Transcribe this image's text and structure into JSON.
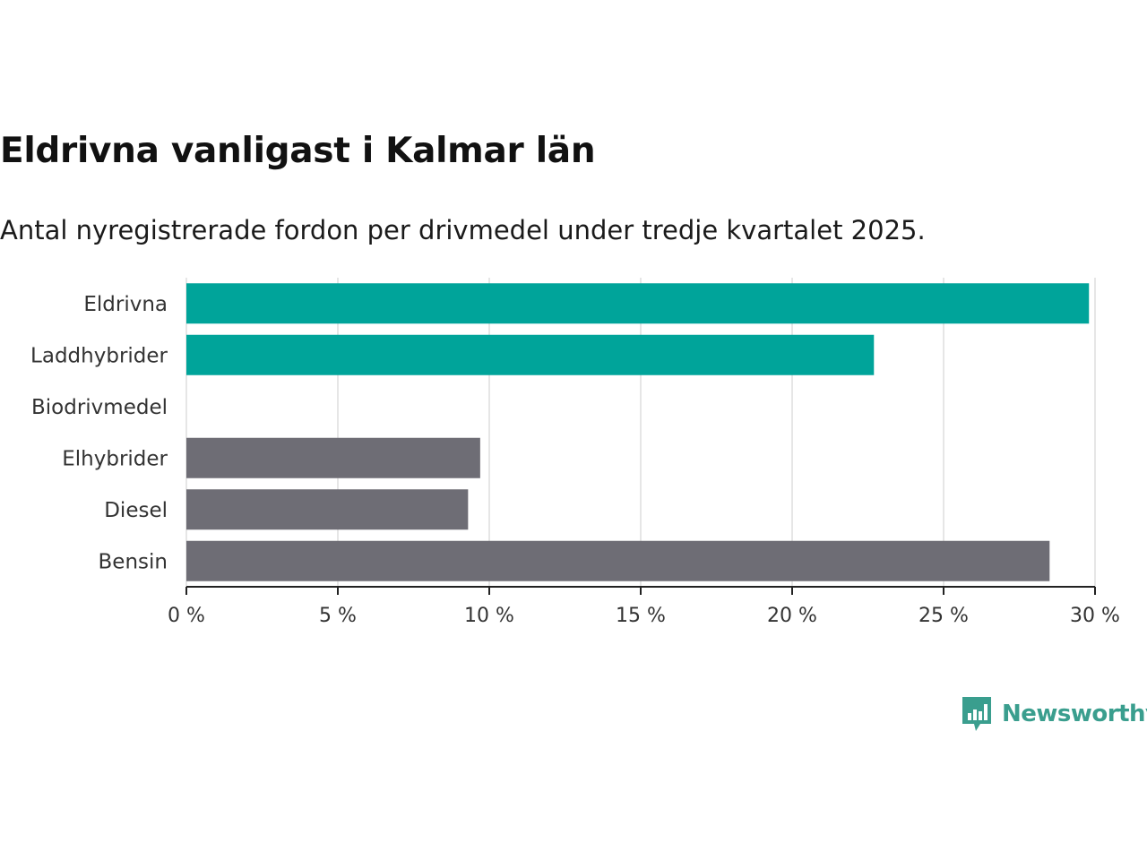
{
  "chart_data": {
    "type": "bar",
    "orientation": "horizontal",
    "title": "Eldrivna vanligast i Kalmar län",
    "subtitle": "Antal nyregistrerade fordon per drivmedel under tredje kvartalet 2025.",
    "categories": [
      "Eldrivna",
      "Laddhybrider",
      "Biodrivmedel",
      "Elhybrider",
      "Diesel",
      "Bensin"
    ],
    "values": [
      29.8,
      22.7,
      0,
      9.7,
      9.3,
      28.5
    ],
    "colors": [
      "#00a49a",
      "#00a49a",
      "#00a49a",
      "#6e6d75",
      "#6e6d75",
      "#6e6d75"
    ],
    "xlim": [
      0,
      30
    ],
    "xticks": [
      0,
      5,
      10,
      15,
      20,
      25,
      30
    ],
    "xtick_labels": [
      "0 %",
      "5 %",
      "10 %",
      "15 %",
      "20 %",
      "25 %",
      "30 %"
    ],
    "xlabel": "",
    "ylabel": "",
    "grid": true
  },
  "brand": {
    "name": "Newsworthy",
    "color": "#3a9e8e",
    "icon": "bar-chart-speech-bubble-icon"
  }
}
